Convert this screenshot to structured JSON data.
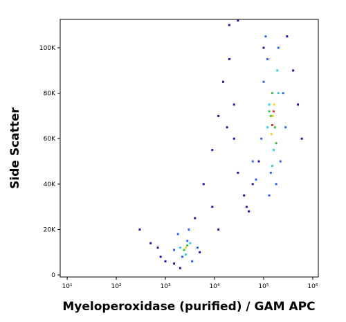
{
  "chart_data": {
    "type": "scatter",
    "x_label": "Myeloperoxidase (purified) / GAM APC",
    "y_label": "Side Scatter",
    "x_log": true,
    "xlim": [
      7.2,
      1300000
    ],
    "xticks": [
      {
        "value": 10,
        "label": "10¹"
      },
      {
        "value": 100,
        "label": "10²"
      },
      {
        "value": 1000,
        "label": "10³"
      },
      {
        "value": 10000,
        "label": "10⁴"
      },
      {
        "value": 100000,
        "label": "10⁵"
      },
      {
        "value": 1000000,
        "label": "10⁶"
      }
    ],
    "ylim": [
      -900,
      112500
    ],
    "yticks": [
      0,
      {
        "value": 20000,
        "label": "20K"
      },
      {
        "value": 40000,
        "label": "40K"
      },
      {
        "value": 60000,
        "label": "60K"
      },
      {
        "value": 80000,
        "label": "80K"
      },
      {
        "value": 100000,
        "label": "100K"
      }
    ],
    "series": [
      {
        "color": "#1a1aa8",
        "x": [
          300,
          500,
          800,
          1500,
          4000,
          6000,
          9000,
          12000,
          15000,
          20000,
          25000,
          30000,
          40000,
          50000,
          60000,
          80000,
          100000,
          300000,
          400000,
          500000,
          600000,
          20000,
          30000,
          9000,
          12000,
          700,
          1000,
          2000,
          5000,
          18000,
          25000,
          45000
        ],
        "values": [
          20000,
          14000,
          8000,
          5000,
          25000,
          40000,
          55000,
          70000,
          85000,
          95000,
          60000,
          45000,
          35000,
          28000,
          40000,
          50000,
          100000,
          105000,
          90000,
          75000,
          60000,
          110000,
          112000,
          30000,
          20000,
          12000,
          6000,
          3000,
          10000,
          65000,
          75000,
          30000
        ]
      },
      {
        "color": "#2a62ff",
        "x": [
          1800,
          2200,
          3000,
          3500,
          4500,
          1500,
          2800,
          100000,
          120000,
          200000,
          250000,
          90000,
          140000,
          220000,
          180000,
          110000,
          60000,
          70000,
          130000,
          280000
        ],
        "values": [
          18000,
          8000,
          20000,
          6000,
          12000,
          11000,
          15000,
          85000,
          95000,
          100000,
          80000,
          60000,
          45000,
          50000,
          40000,
          105000,
          50000,
          42000,
          35000,
          65000
        ]
      },
      {
        "color": "#30d0d8",
        "x": [
          2000,
          2600,
          3200,
          130000,
          200000,
          160000,
          120000,
          190000,
          150000
        ],
        "values": [
          12000,
          9000,
          14000,
          75000,
          80000,
          55000,
          65000,
          90000,
          48000
        ]
      },
      {
        "color": "#3cc040",
        "x": [
          2400,
          2800,
          140000,
          170000,
          150000,
          180000,
          130000
        ],
        "values": [
          11000,
          13000,
          70000,
          65000,
          80000,
          58000,
          72000
        ]
      },
      {
        "color": "#e8e020",
        "x": [
          2600,
          155000,
          165000,
          145000
        ],
        "values": [
          12000,
          70000,
          75000,
          62000
        ]
      },
      {
        "color": "#e03020",
        "x": [
          160000,
          150000
        ],
        "values": [
          72000,
          66000
        ]
      }
    ]
  }
}
